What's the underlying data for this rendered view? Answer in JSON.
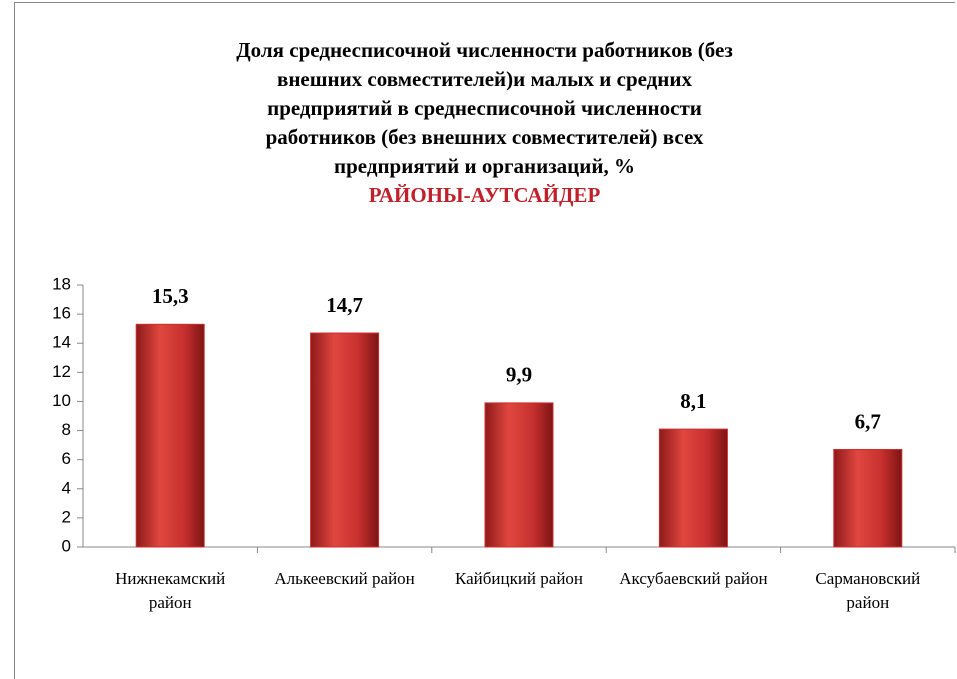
{
  "chart_data": {
    "type": "bar",
    "title": [
      "Доля среднесписочной численности работников (без",
      "внешних совместителей)и малых и средних",
      "предприятий в среднесписочной численности",
      "работников (без внешних совместителей) всех",
      "предприятий и организаций, %"
    ],
    "subtitle": "РАЙОНЫ-АУТСАЙДЕР",
    "categories": [
      "Нижнекамский район",
      "Алькеевский район",
      "Кайбицкий район",
      "Аксубаевский район",
      "Сармановский район"
    ],
    "values": [
      15.3,
      14.7,
      9.9,
      8.1,
      6.7
    ],
    "value_labels": [
      "15,3",
      "14,7",
      "9,9",
      "8,1",
      "6,7"
    ],
    "color": "#c8302f",
    "ylim": [
      0,
      18
    ],
    "yticks": [
      0,
      2,
      4,
      6,
      8,
      10,
      12,
      14,
      16,
      18
    ],
    "grid": false
  }
}
